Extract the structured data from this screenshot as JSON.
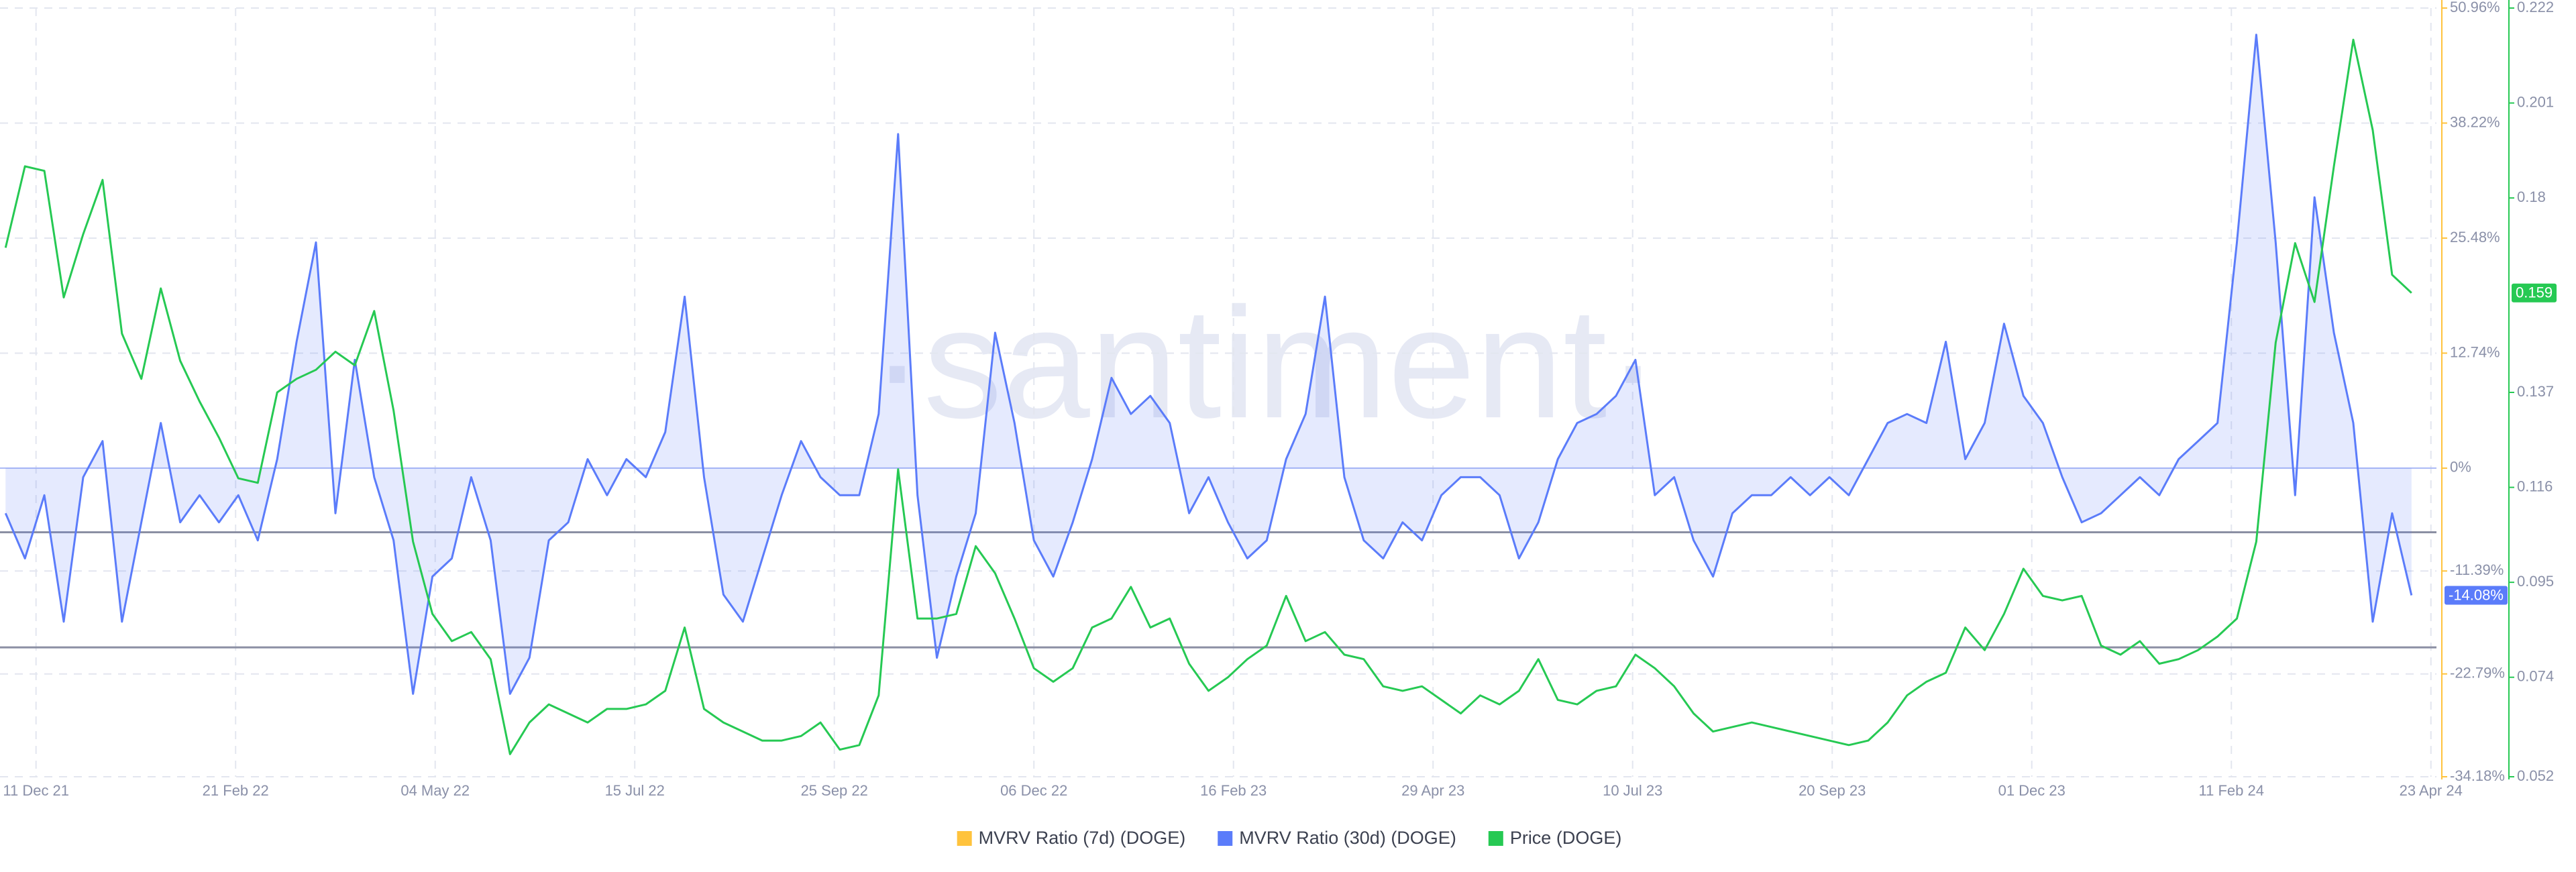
{
  "chart_data": {
    "type": "line",
    "watermark": "·santiment·",
    "x": [
      "2021-11-30",
      "2021-12-07",
      "2021-12-14",
      "2021-12-21",
      "2021-12-28",
      "2022-01-04",
      "2022-01-11",
      "2022-01-18",
      "2022-01-25",
      "2022-02-01",
      "2022-02-08",
      "2022-02-15",
      "2022-02-22",
      "2022-03-01",
      "2022-03-08",
      "2022-03-15",
      "2022-03-22",
      "2022-03-29",
      "2022-04-05",
      "2022-04-12",
      "2022-04-19",
      "2022-04-26",
      "2022-05-03",
      "2022-05-10",
      "2022-05-17",
      "2022-05-24",
      "2022-05-31",
      "2022-06-07",
      "2022-06-14",
      "2022-06-21",
      "2022-06-28",
      "2022-07-05",
      "2022-07-12",
      "2022-07-19",
      "2022-07-26",
      "2022-08-02",
      "2022-08-09",
      "2022-08-16",
      "2022-08-23",
      "2022-08-30",
      "2022-09-06",
      "2022-09-13",
      "2022-09-20",
      "2022-09-27",
      "2022-10-04",
      "2022-10-11",
      "2022-10-18",
      "2022-10-25",
      "2022-11-01",
      "2022-11-08",
      "2022-11-15",
      "2022-11-22",
      "2022-11-29",
      "2022-12-06",
      "2022-12-13",
      "2022-12-20",
      "2022-12-27",
      "2023-01-03",
      "2023-01-10",
      "2023-01-17",
      "2023-01-24",
      "2023-01-31",
      "2023-02-07",
      "2023-02-14",
      "2023-02-21",
      "2023-02-28",
      "2023-03-07",
      "2023-03-14",
      "2023-03-21",
      "2023-03-28",
      "2023-04-04",
      "2023-04-11",
      "2023-04-18",
      "2023-04-25",
      "2023-05-02",
      "2023-05-09",
      "2023-05-16",
      "2023-05-23",
      "2023-05-30",
      "2023-06-06",
      "2023-06-13",
      "2023-06-20",
      "2023-06-27",
      "2023-07-04",
      "2023-07-11",
      "2023-07-18",
      "2023-07-25",
      "2023-08-01",
      "2023-08-08",
      "2023-08-15",
      "2023-08-22",
      "2023-08-29",
      "2023-09-05",
      "2023-09-12",
      "2023-09-19",
      "2023-09-26",
      "2023-10-03",
      "2023-10-10",
      "2023-10-17",
      "2023-10-24",
      "2023-10-31",
      "2023-11-07",
      "2023-11-14",
      "2023-11-21",
      "2023-11-28",
      "2023-12-05",
      "2023-12-12",
      "2023-12-19",
      "2023-12-26",
      "2024-01-02",
      "2024-01-09",
      "2024-01-16",
      "2024-01-23",
      "2024-01-30",
      "2024-02-06",
      "2024-02-13",
      "2024-02-20",
      "2024-02-27",
      "2024-03-05",
      "2024-03-12",
      "2024-03-19",
      "2024-03-26",
      "2024-04-02",
      "2024-04-09",
      "2024-04-16"
    ],
    "xlim": [
      "2021-11-28",
      "2024-04-25"
    ],
    "xticks": [
      {
        "value": "2021-12-11",
        "label": "11 Dec 21"
      },
      {
        "value": "2022-02-21",
        "label": "21 Feb 22"
      },
      {
        "value": "2022-05-04",
        "label": "04 May 22"
      },
      {
        "value": "2022-07-15",
        "label": "15 Jul 22"
      },
      {
        "value": "2022-09-25",
        "label": "25 Sep 22"
      },
      {
        "value": "2022-12-06",
        "label": "06 Dec 22"
      },
      {
        "value": "2023-02-16",
        "label": "16 Feb 23"
      },
      {
        "value": "2023-04-29",
        "label": "29 Apr 23"
      },
      {
        "value": "2023-07-10",
        "label": "10 Jul 23"
      },
      {
        "value": "2023-09-20",
        "label": "20 Sep 23"
      },
      {
        "value": "2023-12-01",
        "label": "01 Dec 23"
      },
      {
        "value": "2024-02-11",
        "label": "11 Feb 24"
      },
      {
        "value": "2024-04-23",
        "label": "23 Apr 24"
      }
    ],
    "ylim": [
      -34.18,
      50.96
    ],
    "yticks": [
      {
        "value": -34.18,
        "label": "-34.18%"
      },
      {
        "value": -22.79,
        "label": "-22.79%"
      },
      {
        "value": -11.39,
        "label": "-11.39%"
      },
      {
        "value": 0,
        "label": "0%"
      },
      {
        "value": 12.74,
        "label": "12.74%"
      },
      {
        "value": 25.48,
        "label": "25.48%"
      },
      {
        "value": 38.22,
        "label": "38.22%"
      },
      {
        "value": 50.96,
        "label": "50.96%"
      }
    ],
    "y2lim": [
      0.052,
      0.222
    ],
    "y2ticks": [
      0.052,
      0.074,
      0.095,
      0.116,
      0.137,
      0.18,
      0.201,
      0.222
    ],
    "grid": true,
    "reference_lines": [
      -7.1,
      -19.85
    ],
    "current_labels": [
      {
        "axis": "y",
        "value": -14.08,
        "label": "-14.08%",
        "color": "#5b7cfa"
      },
      {
        "axis": "y2",
        "value": 0.159,
        "color": "#26c953"
      }
    ],
    "series": [
      {
        "name": "MVRV Ratio (7d) (DOGE)",
        "color": "#ffc33d",
        "axis": "y",
        "values": [
          null,
          null,
          null,
          null,
          null,
          null,
          null,
          null,
          null,
          null,
          null,
          null,
          null,
          null,
          null,
          null,
          null,
          null,
          null,
          null,
          null,
          null,
          null,
          null,
          null,
          null,
          null,
          null,
          null,
          null,
          null,
          null,
          null,
          null,
          null,
          null,
          null,
          null,
          null,
          null,
          null,
          null,
          null,
          null,
          null,
          null,
          null,
          null,
          null,
          null,
          null,
          null,
          null,
          null,
          null,
          null,
          null,
          null,
          null,
          null,
          null,
          null,
          null,
          null,
          null,
          null,
          null,
          null,
          null,
          null,
          null,
          null,
          null,
          null,
          null,
          null,
          null,
          null,
          null,
          null,
          null,
          null,
          null,
          null,
          null,
          null,
          null,
          null,
          null,
          null,
          null,
          null,
          null,
          null,
          null,
          null,
          null,
          null,
          null,
          null,
          null,
          null,
          null,
          null,
          null,
          null,
          null,
          null,
          null,
          null,
          null,
          null,
          null,
          null,
          null,
          null,
          null,
          null,
          null,
          null,
          null,
          null,
          null,
          null,
          null
        ]
      },
      {
        "name": "MVRV Ratio (30d) (DOGE)",
        "color": "#5b7cfa",
        "axis": "y",
        "area": true,
        "values": [
          -5,
          -10,
          -3,
          -17,
          -1,
          3,
          -17,
          -6,
          5,
          -6,
          -3,
          -6,
          -3,
          -8,
          1,
          14,
          25,
          -5,
          12,
          -1,
          -8,
          -25,
          -12,
          -10,
          -1,
          -8,
          -25,
          -21,
          -8,
          -6,
          1,
          -3,
          1,
          -1,
          4,
          19,
          -1,
          -14,
          -17,
          -10,
          -3,
          3,
          -1,
          -3,
          -3,
          6,
          37,
          -3,
          -21,
          -12,
          -5,
          15,
          5,
          -8,
          -12,
          -6,
          1,
          10,
          6,
          8,
          5,
          -5,
          -1,
          -6,
          -10,
          -8,
          1,
          6,
          19,
          -1,
          -8,
          -10,
          -6,
          -8,
          -3,
          -1,
          -1,
          -3,
          -10,
          -6,
          1,
          5,
          6,
          8,
          12,
          -3,
          -1,
          -8,
          -12,
          -5,
          -3,
          -3,
          -1,
          -3,
          -1,
          -3,
          1,
          5,
          6,
          5,
          14,
          1,
          5,
          16,
          8,
          5,
          -1,
          -6,
          -5,
          -3,
          -1,
          -3,
          1,
          3,
          5,
          25,
          48,
          25,
          -3,
          30,
          15,
          5,
          -17,
          -5,
          -14.08
        ]
      },
      {
        "name": "Price (DOGE)",
        "color": "#26c953",
        "axis": "y2",
        "values": [
          0.169,
          0.187,
          0.186,
          0.158,
          0.172,
          0.184,
          0.15,
          0.14,
          0.16,
          0.144,
          0.135,
          0.127,
          0.118,
          0.117,
          0.137,
          0.14,
          0.142,
          0.146,
          0.143,
          0.155,
          0.133,
          0.104,
          0.088,
          0.082,
          0.084,
          0.078,
          0.057,
          0.064,
          0.068,
          0.066,
          0.064,
          0.067,
          0.067,
          0.068,
          0.071,
          0.085,
          0.067,
          0.064,
          0.062,
          0.06,
          0.06,
          0.061,
          0.064,
          0.058,
          0.059,
          0.07,
          0.12,
          0.087,
          0.087,
          0.088,
          0.103,
          0.097,
          0.087,
          0.076,
          0.073,
          0.076,
          0.085,
          0.087,
          0.094,
          0.085,
          0.087,
          0.077,
          0.071,
          0.074,
          0.078,
          0.081,
          0.092,
          0.082,
          0.084,
          0.079,
          0.078,
          0.072,
          0.071,
          0.072,
          0.069,
          0.066,
          0.07,
          0.068,
          0.071,
          0.078,
          0.069,
          0.068,
          0.071,
          0.072,
          0.079,
          0.076,
          0.072,
          0.066,
          0.062,
          0.063,
          0.064,
          0.063,
          0.062,
          0.061,
          0.06,
          0.059,
          0.06,
          0.064,
          0.07,
          0.073,
          0.075,
          0.085,
          0.08,
          0.088,
          0.098,
          0.092,
          0.091,
          0.092,
          0.081,
          0.079,
          0.082,
          0.077,
          0.078,
          0.08,
          0.083,
          0.087,
          0.104,
          0.148,
          0.17,
          0.157,
          0.187,
          0.215,
          0.195,
          0.163,
          0.159
        ]
      }
    ]
  }
}
